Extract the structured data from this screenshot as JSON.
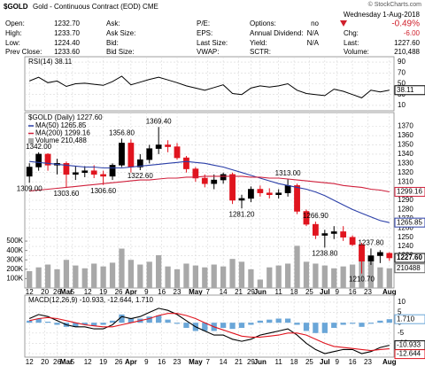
{
  "header": {
    "symbol": "$GOLD",
    "name": "Gold - Continuous Contract (EOD) CME",
    "credit": "© StockCharts.com",
    "date": "Wednesday 1-Aug-2018",
    "change_pct": "-0.49%",
    "quote": [
      [
        {
          "label": "Open:",
          "value": "1232.70"
        },
        {
          "label": "High:",
          "value": "1233.70"
        },
        {
          "label": "Low:",
          "value": "1224.40"
        },
        {
          "label": "Prev Close:",
          "value": "1233.60"
        }
      ],
      [
        {
          "label": "Ask:"
        },
        {
          "label": "Ask Size:"
        },
        {
          "label": "Bid:"
        },
        {
          "label": "Bid Size:"
        }
      ],
      [
        {
          "label": "P/E:"
        },
        {
          "label": "EPS:"
        },
        {
          "label": "Last Size:"
        },
        {
          "label": "VWAP:"
        }
      ],
      [
        {
          "label": "Options:",
          "value": "no"
        },
        {
          "label": "Annual Dividend:",
          "value": "N/A"
        },
        {
          "label": "Yield:",
          "value": "N/A"
        },
        {
          "label": "SCTR:"
        }
      ],
      [
        {
          "label": "Chg:",
          "value": "-6.00"
        },
        {
          "label": "Last:",
          "value": "1227.60"
        },
        {
          "label": "Volume:",
          "value": "210,488"
        }
      ]
    ]
  },
  "chart_data": [
    {
      "type": "line",
      "title": "RSI(14) 38.11",
      "ylim": [
        0,
        100
      ],
      "yticks": [
        10,
        30,
        50,
        70,
        90
      ],
      "grid": true,
      "series": [
        {
          "color": "#000000",
          "values": [
            55,
            62,
            52,
            55,
            45,
            50,
            51,
            49,
            47,
            54,
            64,
            48,
            53,
            58,
            62,
            57,
            52,
            46,
            42,
            38,
            43,
            48,
            32,
            30,
            42,
            46,
            44,
            46,
            50,
            38,
            32,
            30,
            28,
            40,
            36,
            30,
            24,
            38,
            35,
            38.11
          ]
        }
      ]
    },
    {
      "type": "candlestick",
      "title": "$GOLD (Daily) 1227.60",
      "last_label": "1227.60",
      "up_color": "#000000",
      "down_color": "#e0141e",
      "xlim": [
        -0.5,
        39.5
      ],
      "xticks": [
        {
          "value": 0,
          "label": "12"
        },
        {
          "value": 1.67,
          "label": "20"
        },
        {
          "value": 3,
          "label": "26"
        },
        {
          "value": 4,
          "label": "Mar"
        },
        {
          "value": 4.67,
          "label": "5"
        },
        {
          "value": 6.33,
          "label": "12"
        },
        {
          "value": 8,
          "label": "19"
        },
        {
          "value": 9.67,
          "label": "26"
        },
        {
          "value": 11,
          "label": "Apr"
        },
        {
          "value": 12.67,
          "label": "9"
        },
        {
          "value": 14.33,
          "label": "16"
        },
        {
          "value": 16,
          "label": "23"
        },
        {
          "value": 18,
          "label": "May"
        },
        {
          "value": 19.33,
          "label": "7"
        },
        {
          "value": 21,
          "label": "14"
        },
        {
          "value": 22.67,
          "label": "21"
        },
        {
          "value": 24,
          "label": "29"
        },
        {
          "value": 25,
          "label": "Jun"
        },
        {
          "value": 27,
          "label": "11"
        },
        {
          "value": 28.67,
          "label": "18"
        },
        {
          "value": 30.33,
          "label": "25"
        },
        {
          "value": 32,
          "label": "Jul"
        },
        {
          "value": 33.33,
          "label": "9"
        },
        {
          "value": 35,
          "label": "16"
        },
        {
          "value": 36.67,
          "label": "23"
        },
        {
          "value": 39,
          "label": "Aug"
        }
      ],
      "ylim": [
        1195,
        1385
      ],
      "yticks": [
        1230,
        1240,
        1250,
        1260,
        1270,
        1280,
        1290,
        1300,
        1310,
        1320,
        1330,
        1340,
        1350,
        1360,
        1370
      ],
      "grid": true,
      "open": [
        1316,
        1326,
        1340,
        1328,
        1330,
        1318,
        1320,
        1322,
        1318,
        1316,
        1328,
        1352,
        1326,
        1334,
        1346,
        1350,
        1348,
        1336,
        1324,
        1314,
        1308,
        1312,
        1318,
        1290,
        1292,
        1302,
        1298,
        1296,
        1298,
        1306,
        1278,
        1264,
        1252,
        1254,
        1256,
        1250,
        1242,
        1224,
        1230,
        1232.7
      ],
      "high": [
        1330,
        1342,
        1341,
        1335,
        1332,
        1327,
        1327,
        1328,
        1322,
        1330,
        1356.8,
        1356,
        1340,
        1350,
        1369.4,
        1355,
        1352,
        1338,
        1326,
        1318,
        1318,
        1320,
        1320,
        1296,
        1305,
        1306,
        1303,
        1302,
        1313,
        1308,
        1280,
        1266.9,
        1258,
        1262,
        1262,
        1252,
        1244,
        1237.8,
        1236,
        1233.7
      ],
      "low": [
        1309,
        1322,
        1322,
        1318,
        1303.6,
        1312,
        1315,
        1314,
        1306.6,
        1312,
        1326,
        1320,
        1322.6,
        1330,
        1340,
        1342,
        1334,
        1320,
        1310,
        1304,
        1302,
        1308,
        1286,
        1281.2,
        1288,
        1294,
        1292,
        1292,
        1294,
        1275,
        1262,
        1248,
        1238.8,
        1248,
        1246,
        1240.5,
        1210.7,
        1220,
        1222,
        1224.4
      ],
      "close": [
        1326,
        1340,
        1328,
        1330,
        1318,
        1320,
        1322,
        1318,
        1316,
        1328,
        1352,
        1326,
        1334,
        1346,
        1350,
        1348,
        1336,
        1324,
        1314,
        1308,
        1312,
        1318,
        1290,
        1292,
        1302,
        1298,
        1296,
        1298,
        1306,
        1278,
        1264,
        1252,
        1254,
        1256,
        1250,
        1242,
        1224,
        1230,
        1233.6,
        1227.6
      ],
      "series": [
        {
          "name": "MA(50) 1265.85",
          "color": "#2b3fa8",
          "last_label": "1265.85",
          "values": [
            1332,
            1331,
            1330,
            1329,
            1328,
            1327,
            1326,
            1326,
            1325,
            1325,
            1325,
            1326,
            1327,
            1328,
            1329,
            1330,
            1331,
            1332,
            1331,
            1330,
            1328,
            1326,
            1323,
            1320,
            1317,
            1314,
            1311,
            1308,
            1306,
            1304,
            1302,
            1299,
            1295,
            1290,
            1285,
            1280,
            1276,
            1272,
            1268,
            1265.85
          ]
        },
        {
          "name": "MA(200) 1299.16",
          "color": "#d0203c",
          "last_label": "1299.16",
          "values": [
            1300,
            1301,
            1302,
            1303,
            1304,
            1305,
            1306,
            1307,
            1308,
            1309,
            1310,
            1311,
            1312,
            1312,
            1313,
            1314,
            1314,
            1315,
            1315,
            1316,
            1316,
            1316,
            1316,
            1316,
            1315,
            1315,
            1314,
            1314,
            1313,
            1312,
            1311,
            1310,
            1309,
            1308,
            1306,
            1305,
            1304,
            1302,
            1301,
            1299.16
          ]
        }
      ],
      "volume": {
        "name": "Volume 210,488",
        "color": "#a8a8a8",
        "ylim": [
          0,
          1870000
        ],
        "yticks": [
          {
            "value": 100000,
            "label": "100K"
          },
          {
            "value": 200000,
            "label": "200K"
          },
          {
            "value": 300000,
            "label": "300K"
          },
          {
            "value": 400000,
            "label": "400K"
          },
          {
            "value": 500000,
            "label": "500K"
          }
        ],
        "values": [
          180000,
          220000,
          250000,
          200000,
          300000,
          240000,
          210000,
          260000,
          230000,
          270000,
          420000,
          300000,
          250000,
          280000,
          350000,
          230000,
          200000,
          260000,
          240000,
          220000,
          250000,
          230000,
          310000,
          280000,
          200000,
          90000,
          220000,
          240000,
          260000,
          450000,
          280000,
          260000,
          240000,
          210000,
          230000,
          250000,
          330000,
          280000,
          220000,
          210488
        ]
      },
      "annotations": [
        {
          "label": "1309.00",
          "value": 1309
        },
        {
          "label": "1342.00",
          "value": 1342
        },
        {
          "label": "1303.60",
          "value": 1303.6
        },
        {
          "label": "1306.60",
          "value": 1306.6
        },
        {
          "label": "1356.80",
          "value": 1356.8
        },
        {
          "label": "1322.60",
          "value": 1322.6
        },
        {
          "label": "1369.40",
          "value": 1369.4
        },
        {
          "label": "1313.00",
          "value": 1313
        },
        {
          "label": "1281.20",
          "value": 1281.2
        },
        {
          "label": "1266.90",
          "value": 1266.9
        },
        {
          "label": "1238.80",
          "value": 1238.8
        },
        {
          "label": "1237.80",
          "value": 1237.8
        },
        {
          "label": "1210.70",
          "value": 1210.7
        }
      ]
    },
    {
      "type": "macd",
      "title": "MACD(12,26,9) -10.933, -12.644, 1.710",
      "ylim": [
        -16.7,
        13.4
      ],
      "yticks": [
        -15,
        -10,
        -5,
        0,
        5,
        10
      ],
      "grid": true,
      "series": [
        {
          "style": "histogram",
          "color": "#6aa6d8",
          "last_label": "1.710",
          "values": [
            1,
            2,
            0.5,
            -1,
            -2,
            -2,
            -1,
            -1.5,
            -1,
            1,
            4,
            2,
            2,
            3,
            3.5,
            1.5,
            -0.5,
            -2.5,
            -4,
            -4,
            -4,
            -2.5,
            -3,
            -2.5,
            -1,
            1,
            1.5,
            2,
            2,
            -1,
            -4,
            -5,
            -5,
            -2.5,
            -1,
            -0.5,
            -2,
            -0.5,
            1,
            1.71
          ]
        },
        {
          "style": "line",
          "color": "#000000",
          "values": [
            2,
            4,
            3,
            1,
            -1,
            -2,
            -2,
            -3,
            -3,
            -1,
            3,
            2,
            3,
            5,
            7,
            6,
            4,
            1,
            -2,
            -4,
            -6,
            -6,
            -8,
            -9,
            -8,
            -6,
            -5,
            -4,
            -3,
            -6,
            -10,
            -13,
            -15,
            -14,
            -13,
            -13,
            -15,
            -14,
            -12,
            -10.933
          ]
        },
        {
          "style": "line",
          "color": "#e0141e",
          "values": [
            1,
            2,
            2.5,
            2,
            1,
            0,
            -1,
            -1.5,
            -2,
            -2,
            -1,
            0,
            1,
            2,
            3.5,
            4.5,
            4.5,
            3.5,
            2,
            0,
            -2,
            -3.5,
            -5,
            -6.5,
            -7,
            -7,
            -6.5,
            -6,
            -5,
            -5,
            -6,
            -8,
            -10,
            -11.5,
            -12,
            -12.5,
            -13,
            -13.5,
            -13,
            -12.644
          ]
        }
      ]
    }
  ]
}
